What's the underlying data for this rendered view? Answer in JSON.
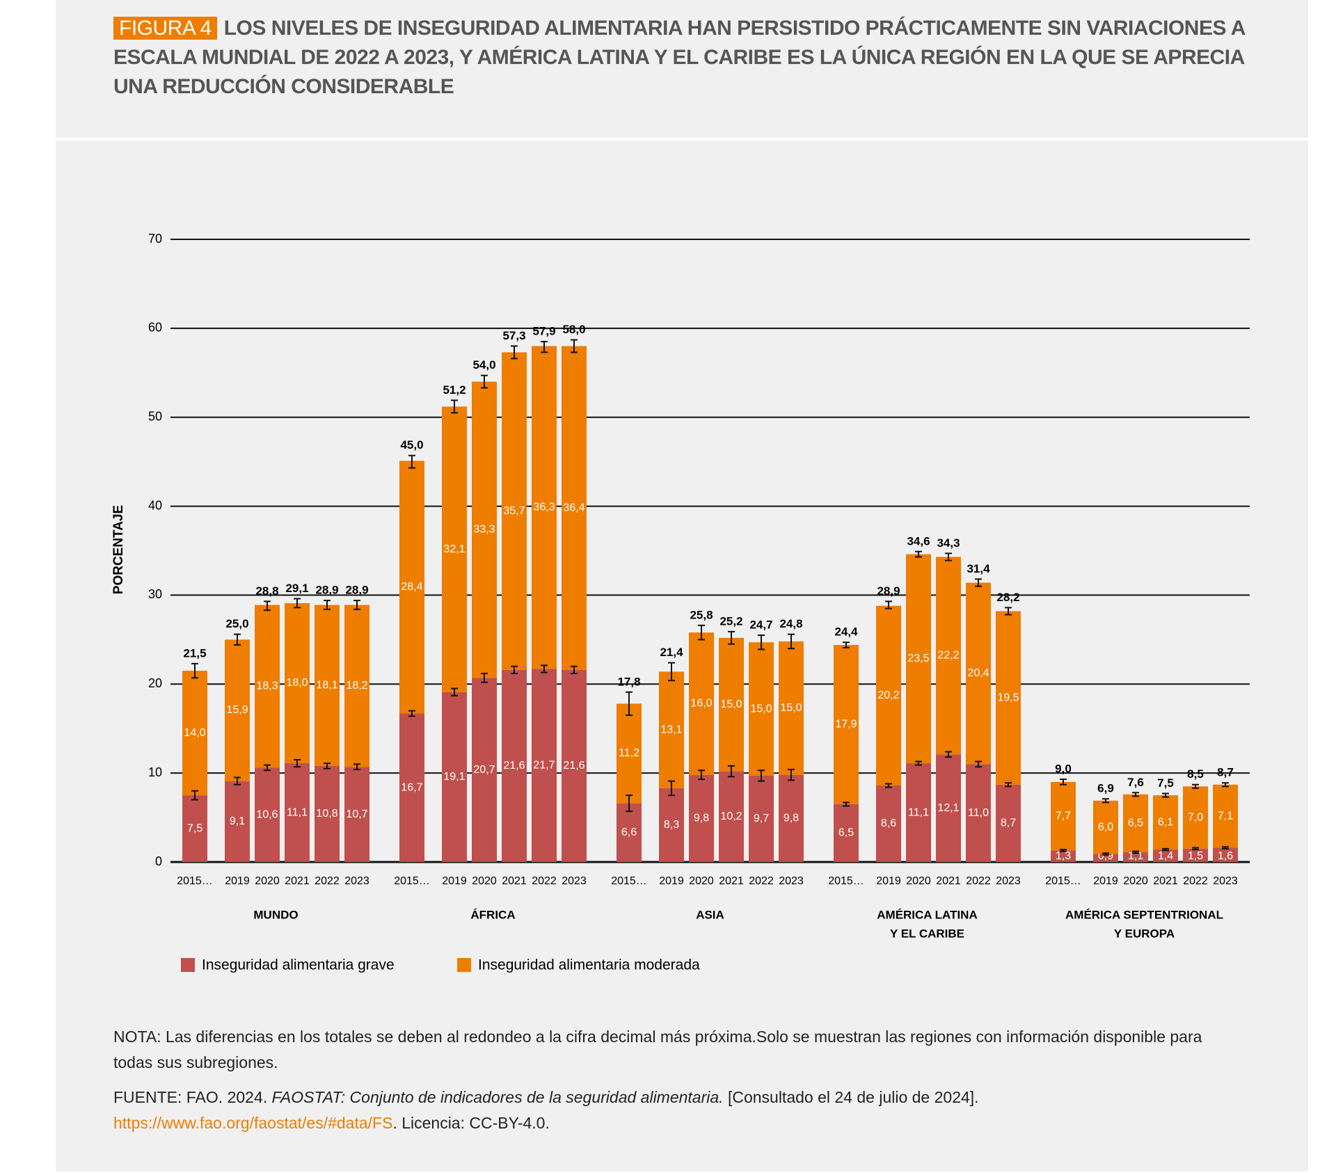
{
  "chart_data": {
    "type": "bar",
    "stacked": true,
    "figure_label": "FIGURA 4",
    "title": "LOS NIVELES DE INSEGURIDAD ALIMENTARIA HAN PERSISTIDO PRÁCTICAMENTE SIN VARIACIONES A ESCALA MUNDIAL DE 2022 A 2023, Y AMÉRICA LATINA Y EL CARIBE ES LA ÚNICA REGIÓN EN LA QUE SE APRECIA UNA REDUCCIÓN CONSIDERABLE",
    "ylabel": "PORCENTAJE",
    "ylim": [
      0,
      70
    ],
    "yticks": [
      0,
      10,
      20,
      30,
      40,
      50,
      60,
      70
    ],
    "grid": true,
    "groups": [
      {
        "label": [
          "MUNDO"
        ],
        "categories": [
          "2015…",
          "2019",
          "2020",
          "2021",
          "2022",
          "2023"
        ]
      },
      {
        "label": [
          "ÁFRICA"
        ],
        "categories": [
          "2015…",
          "2019",
          "2020",
          "2021",
          "2022",
          "2023"
        ]
      },
      {
        "label": [
          "ASIA"
        ],
        "categories": [
          "2015…",
          "2019",
          "2020",
          "2021",
          "2022",
          "2023"
        ]
      },
      {
        "label": [
          "AMÉRICA LATINA",
          "Y EL CARIBE"
        ],
        "categories": [
          "2015…",
          "2019",
          "2020",
          "2021",
          "2022",
          "2023"
        ]
      },
      {
        "label": [
          "AMÉRICA SEPTENTRIONAL",
          "Y EUROPA"
        ],
        "categories": [
          "2015…",
          "2019",
          "2020",
          "2021",
          "2022",
          "2023"
        ]
      }
    ],
    "series": [
      {
        "name": "Inseguridad alimentaria grave",
        "color": "#c0504d",
        "values": [
          [
            7.5,
            9.1,
            10.6,
            11.1,
            10.8,
            10.7
          ],
          [
            16.7,
            19.1,
            20.7,
            21.6,
            21.7,
            21.6
          ],
          [
            6.6,
            8.3,
            9.8,
            10.2,
            9.7,
            9.8
          ],
          [
            6.5,
            8.6,
            11.1,
            12.1,
            11.0,
            8.7
          ],
          [
            1.3,
            0.9,
            1.1,
            1.4,
            1.5,
            1.6
          ]
        ],
        "value_labels": [
          [
            "7,5",
            "9,1",
            "10,6",
            "11,1",
            "10,8",
            "10,7"
          ],
          [
            "16,7",
            "19,1",
            "20,7",
            "21,6",
            "21,7",
            "21,6"
          ],
          [
            "6,6",
            "8,3",
            "9,8",
            "10,2",
            "9,7",
            "9,8"
          ],
          [
            "6,5",
            "8,6",
            "11,1",
            "12,1",
            "11,0",
            "8,7"
          ],
          [
            "1,3",
            "0,9",
            "1,1",
            "1,4",
            "1,5",
            "1,6"
          ]
        ],
        "errors": [
          [
            0.5,
            0.4,
            0.3,
            0.4,
            0.3,
            0.3
          ],
          [
            0.3,
            0.4,
            0.5,
            0.4,
            0.4,
            0.4
          ],
          [
            0.9,
            0.8,
            0.5,
            0.6,
            0.6,
            0.6
          ],
          [
            0.2,
            0.2,
            0.2,
            0.3,
            0.3,
            0.2
          ],
          [
            0.1,
            0.1,
            0.1,
            0.1,
            0.1,
            0.1
          ]
        ]
      },
      {
        "name": "Inseguridad alimentaria moderada",
        "color": "#ee7d00",
        "values": [
          [
            14.0,
            15.9,
            18.3,
            18.0,
            18.1,
            18.2
          ],
          [
            28.4,
            32.1,
            33.3,
            35.7,
            36.3,
            36.4
          ],
          [
            11.2,
            13.1,
            16.0,
            15.0,
            15.0,
            15.0
          ],
          [
            17.9,
            20.2,
            23.5,
            22.2,
            20.4,
            19.5
          ],
          [
            7.7,
            6.0,
            6.5,
            6.1,
            7.0,
            7.1
          ]
        ],
        "value_labels": [
          [
            "14,0",
            "15,9",
            "18,3",
            "18,0",
            "18,1",
            "18,2"
          ],
          [
            "28,4",
            "32,1",
            "33,3",
            "35,7",
            "36,3",
            "36,4"
          ],
          [
            "11,2",
            "13,1",
            "16,0",
            "15,0",
            "15,0",
            "15,0"
          ],
          [
            "17,9",
            "20,2",
            "23,5",
            "22,2",
            "20,4",
            "19,5"
          ],
          [
            "7,7",
            "6,0",
            "6,5",
            "6,1",
            "7,0",
            "7,1"
          ]
        ]
      }
    ],
    "totals": {
      "values": [
        [
          21.5,
          25.0,
          28.8,
          29.1,
          28.9,
          28.9
        ],
        [
          45.0,
          51.2,
          54.0,
          57.3,
          57.9,
          58.0
        ],
        [
          17.8,
          21.4,
          25.8,
          25.2,
          24.7,
          24.8
        ],
        [
          24.4,
          28.9,
          34.6,
          34.3,
          31.4,
          28.2
        ],
        [
          9.0,
          6.9,
          7.6,
          7.5,
          8.5,
          8.7
        ]
      ],
      "value_labels": [
        [
          "21,5",
          "25,0",
          "28,8",
          "29,1",
          "28,9",
          "28,9"
        ],
        [
          "45,0",
          "51,2",
          "54,0",
          "57,3",
          "57,9",
          "58,0"
        ],
        [
          "17,8",
          "21,4",
          "25,8",
          "25,2",
          "24,7",
          "24,8"
        ],
        [
          "24,4",
          "28,9",
          "34,6",
          "34,3",
          "31,4",
          "28,2"
        ],
        [
          "9,0",
          "6,9",
          "7,6",
          "7,5",
          "8,5",
          "8,7"
        ]
      ],
      "errors": [
        [
          0.8,
          0.6,
          0.5,
          0.5,
          0.5,
          0.5
        ],
        [
          0.7,
          0.7,
          0.7,
          0.7,
          0.6,
          0.7
        ],
        [
          1.3,
          1.0,
          0.8,
          0.7,
          0.8,
          0.8
        ],
        [
          0.3,
          0.4,
          0.3,
          0.4,
          0.4,
          0.4
        ],
        [
          0.3,
          0.2,
          0.2,
          0.2,
          0.2,
          0.2
        ]
      ]
    },
    "note": "NOTA: Las diferencias en los totales se deben al redondeo a la cifra decimal más próxima.Solo se muestran las regiones con información disponible para todas sus subregiones.",
    "source": {
      "lead": "FUENTE: FAO. 2024. ",
      "title": "FAOSTAT: Conjunto de indicadores de la seguridad alimentaria.",
      "accessed": " [Consultado el 24 de julio de 2024].",
      "link": "https://www.fao.org/faostat/es/#data/FS",
      "license": ". Licencia: CC-BY-4.0."
    }
  }
}
